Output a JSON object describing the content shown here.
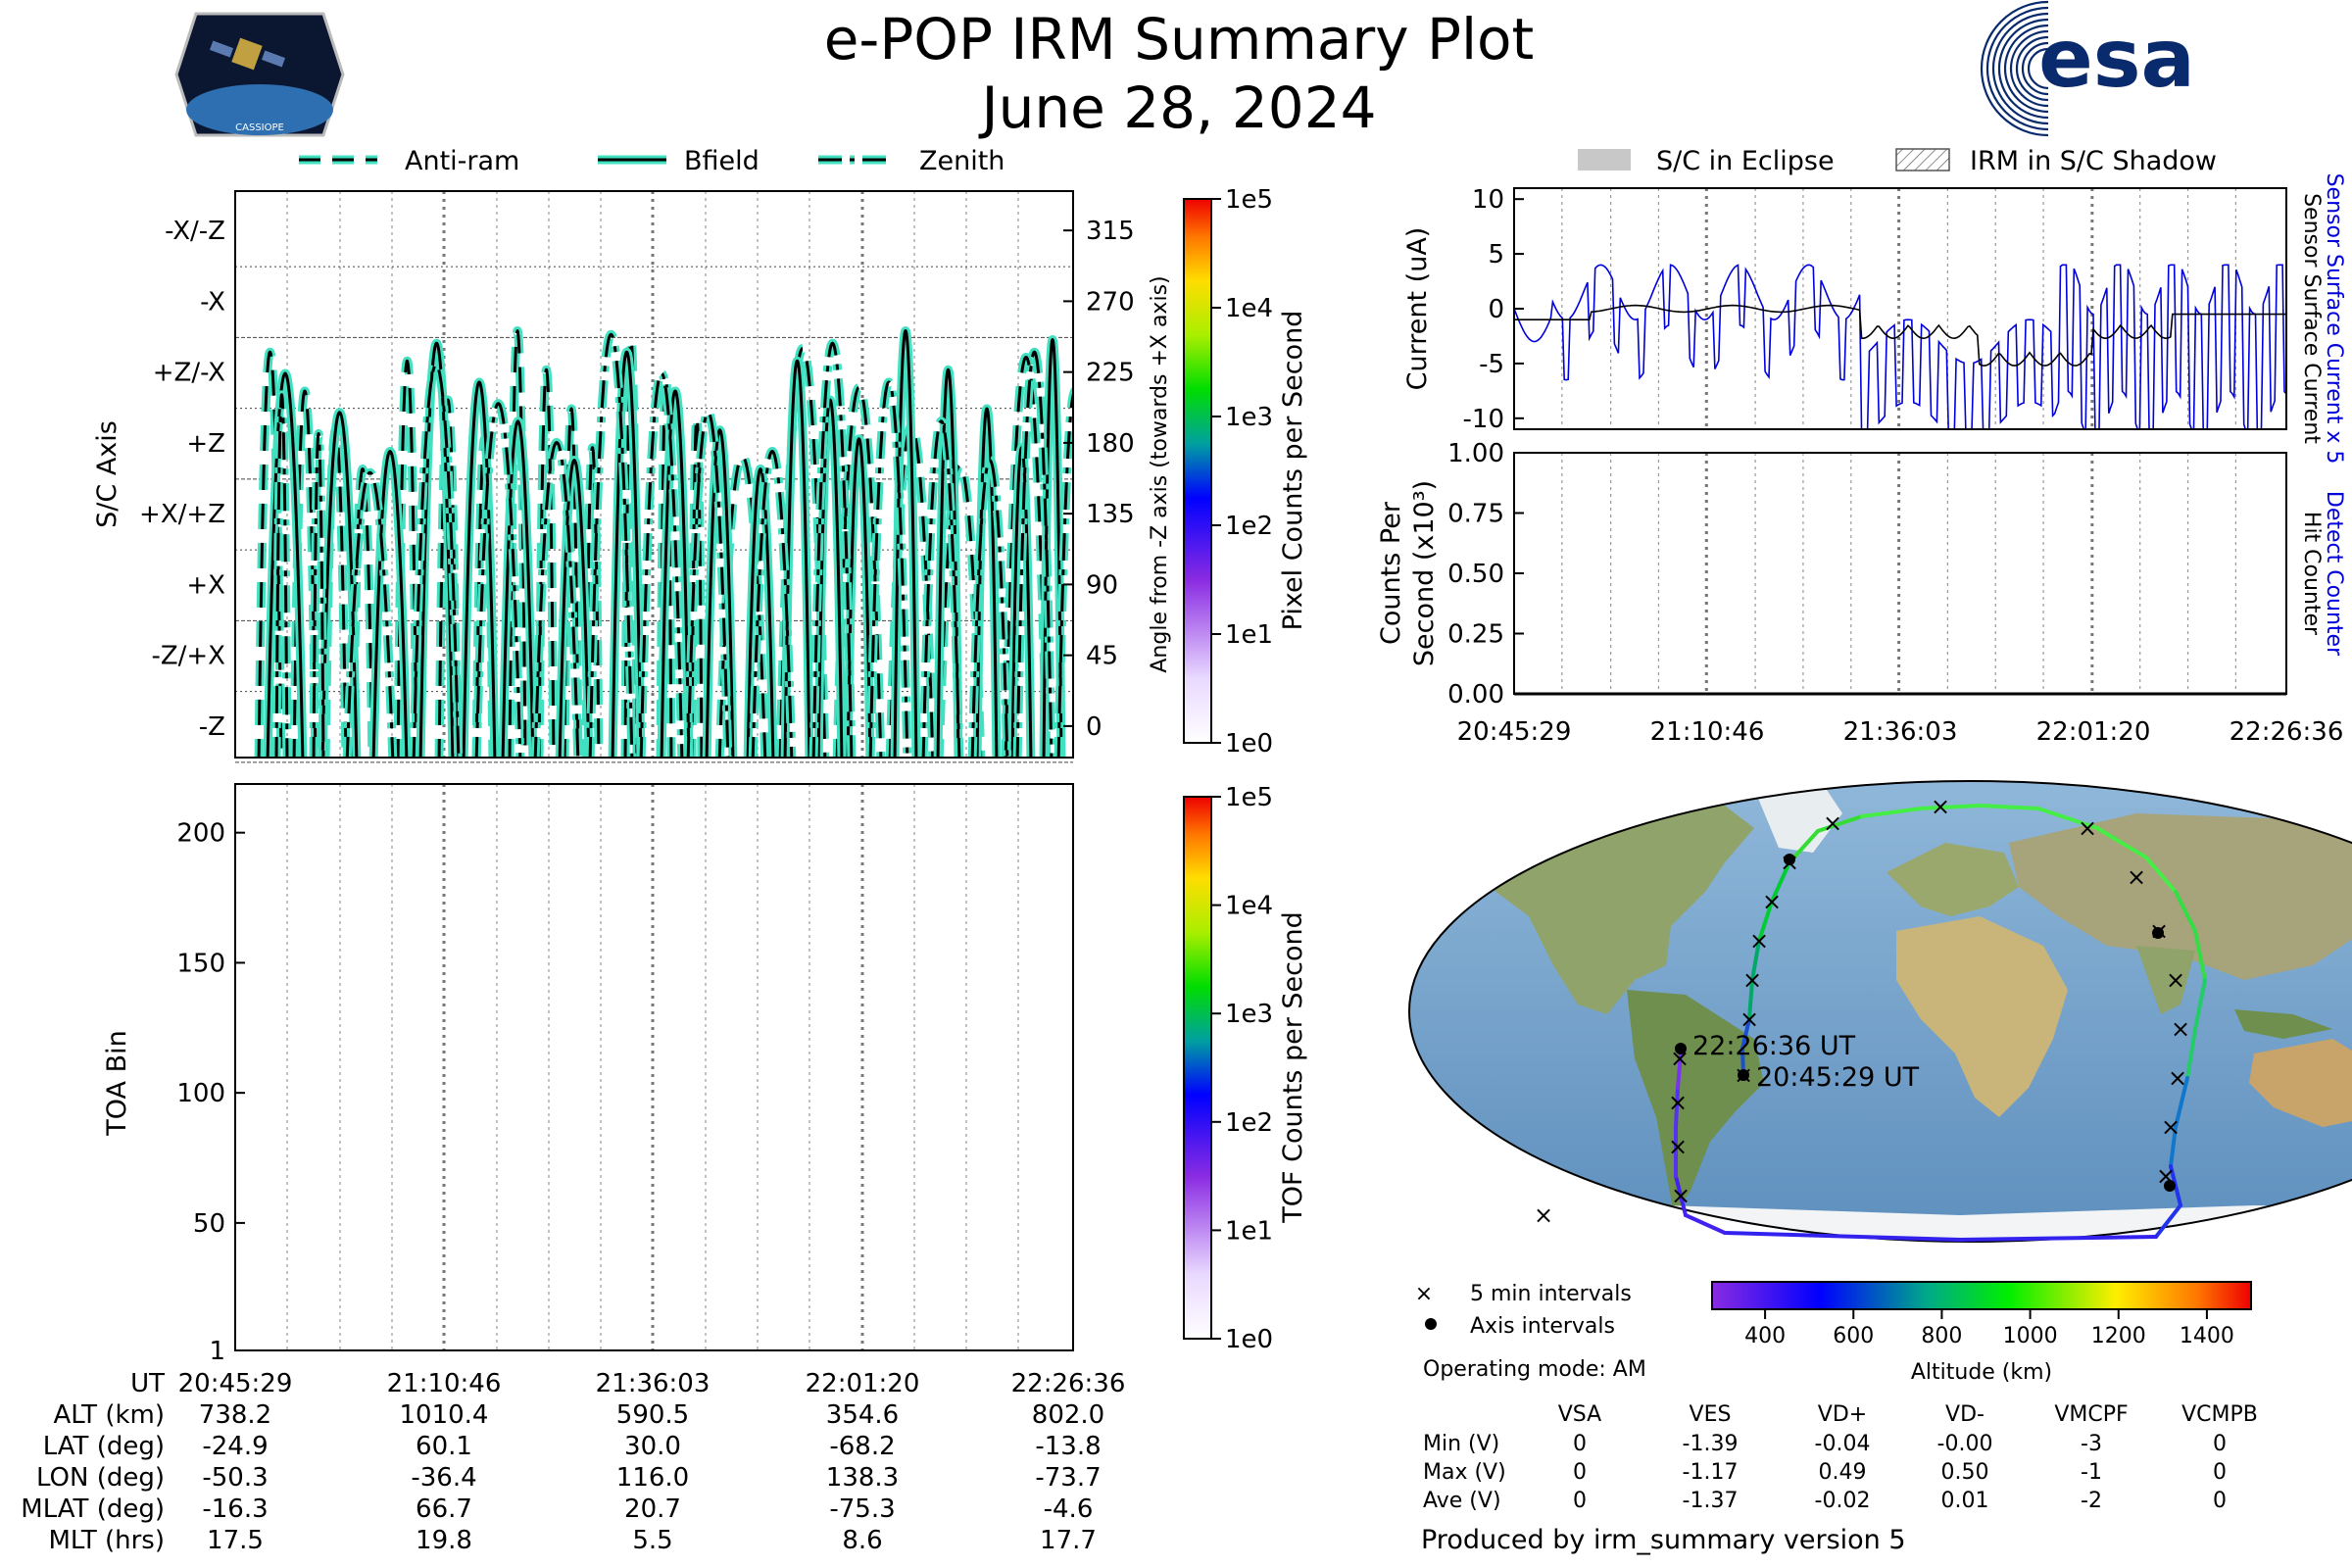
{
  "header": {
    "title": "e-POP IRM Summary Plot",
    "date": "June 28, 2024",
    "mission_logo_text": "CASSIOPE",
    "agency_logo_text": "esa"
  },
  "colors": {
    "trace_fill": "#40e0c0",
    "trace_edge": "#000000",
    "sensor_current": "#0000dd",
    "surface_current": "#000000",
    "brand_navy": "#0a2a6e"
  },
  "legend_top": [
    {
      "label": "Anti-ram",
      "style": "dashed"
    },
    {
      "label": "Bfield",
      "style": "solid"
    },
    {
      "label": "Zenith",
      "style": "dashdot"
    }
  ],
  "legend_right": [
    {
      "label": "S/C in Eclipse",
      "style": "gray-box"
    },
    {
      "label": "IRM in S/C Shadow",
      "style": "hatched-box"
    }
  ],
  "axis_panel": {
    "ylabel": "S/C Axis",
    "ylabel_right": "Angle from -Z axis (towards +X axis)",
    "left_ticks": [
      "-X/-Z",
      "-X",
      "+Z/-X",
      "+Z",
      "+X/+Z",
      "+X",
      "-Z/+X",
      "-Z"
    ],
    "right_ticks": [
      "315",
      "270",
      "225",
      "180",
      "135",
      "90",
      "45",
      "0"
    ],
    "colorbar_label": "Pixel Counts per Second",
    "colorbar_ticks": [
      "1e5",
      "1e4",
      "1e3",
      "1e2",
      "1e1",
      "1e0"
    ]
  },
  "toa_panel": {
    "ylabel": "TOA Bin",
    "yticks": [
      "200",
      "150",
      "100",
      "50",
      "1"
    ],
    "colorbar_label": "TOF Counts per Second",
    "colorbar_ticks": [
      "1e5",
      "1e4",
      "1e3",
      "1e2",
      "1e1",
      "1e0"
    ]
  },
  "current_panel": {
    "ylabel": "Current (uA)",
    "yticks": [
      "10",
      "5",
      "0",
      "-5",
      "-10"
    ],
    "right_label_blue": "Sensor Surface Current x 5",
    "right_label_black": "Sensor Surface Current"
  },
  "counts_panel": {
    "ylabel_line1": "Counts Per",
    "ylabel_line2": "Second (x10³)",
    "yticks": [
      "1.00",
      "0.75",
      "0.50",
      "0.25",
      "0.00"
    ],
    "right_label_blue": "Detect Counter",
    "right_label_black": "Hit Counter",
    "xticks": [
      "20:45:29",
      "21:10:46",
      "21:36:03",
      "22:01:20",
      "22:26:36"
    ]
  },
  "ephemeris": {
    "row_labels": [
      "UT",
      "ALT (km)",
      "LAT (deg)",
      "LON (deg)",
      "MLAT (deg)",
      "MLT (hrs)"
    ],
    "columns": [
      [
        "20:45:29",
        "738.2",
        "-24.9",
        "-50.3",
        "-16.3",
        "17.5"
      ],
      [
        "21:10:46",
        "1010.4",
        "60.1",
        "-36.4",
        "66.7",
        "19.8"
      ],
      [
        "21:36:03",
        "590.5",
        "30.0",
        "116.0",
        "20.7",
        "5.5"
      ],
      [
        "22:01:20",
        "354.6",
        "-68.2",
        "138.3",
        "-75.3",
        "8.6"
      ],
      [
        "22:26:36",
        "802.0",
        "-13.8",
        "-73.7",
        "-4.6",
        "17.7"
      ]
    ]
  },
  "map": {
    "start_label": "20:45:29 UT",
    "end_label": "22:26:36 UT",
    "legend": [
      {
        "symbol": "×",
        "label": "5 min intervals"
      },
      {
        "symbol": "●",
        "label": "Axis intervals"
      }
    ],
    "colorbar_ticks": [
      "400",
      "600",
      "800",
      "1000",
      "1200",
      "1400"
    ],
    "colorbar_label": "Altitude (km)",
    "colorbar_range_km": [
      280,
      1500
    ]
  },
  "voltages": {
    "operating_mode": "Operating mode: AM",
    "headers": [
      "VSA",
      "VES",
      "VD+",
      "VD-",
      "VMCPF",
      "VCMPB"
    ],
    "rows": [
      {
        "label": "Min (V)",
        "values": [
          "0",
          "-1.39",
          "-0.04",
          "-0.00",
          "-3",
          "0"
        ]
      },
      {
        "label": "Max (V)",
        "values": [
          "0",
          "-1.17",
          "0.49",
          "0.50",
          "-1",
          "0"
        ]
      },
      {
        "label": "Ave (V)",
        "values": [
          "0",
          "-1.37",
          "-0.02",
          "0.01",
          "-2",
          "0"
        ]
      }
    ]
  },
  "footer": "Produced by irm_summary version 5",
  "chart_data": [
    {
      "type": "line",
      "title": "",
      "xlabel": "UT",
      "ylabel": "S/C Axis",
      "x_ticks": [
        "20:45:29",
        "21:10:46",
        "21:36:03",
        "22:01:20",
        "22:26:36"
      ],
      "ylim": [
        -20,
        340
      ],
      "series": [
        {
          "name": "Anti-ram"
        },
        {
          "name": "Bfield"
        },
        {
          "name": "Zenith"
        }
      ],
      "colorbar": {
        "label": "Pixel Counts per Second",
        "range": [
          1,
          100000
        ],
        "scale": "log"
      }
    },
    {
      "type": "heatmap",
      "ylabel": "TOA Bin",
      "ylim": [
        1,
        210
      ],
      "values": [],
      "colorbar": {
        "label": "TOF Counts per Second",
        "range": [
          1,
          100000
        ],
        "scale": "log"
      }
    },
    {
      "type": "line",
      "ylabel": "Current (uA)",
      "ylim": [
        -11,
        11
      ],
      "series": [
        {
          "name": "Sensor Surface Current x 5",
          "color": "#0000dd"
        },
        {
          "name": "Sensor Surface Current",
          "color": "#000000"
        }
      ]
    },
    {
      "type": "line",
      "ylabel": "Counts Per Second (x10³)",
      "ylim": [
        0,
        1
      ],
      "series": [
        {
          "name": "Detect Counter",
          "color": "#0000dd",
          "values": [
            0,
            0,
            0,
            0,
            0
          ]
        },
        {
          "name": "Hit Counter",
          "color": "#000000",
          "values": [
            0,
            0,
            0,
            0,
            0
          ]
        }
      ]
    }
  ]
}
